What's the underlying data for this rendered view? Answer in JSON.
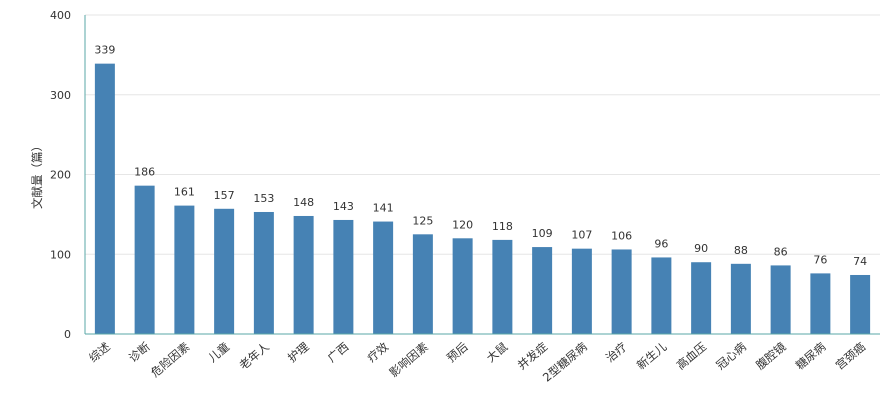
{
  "chart_data": {
    "type": "bar",
    "ylabel": "文献量（篇）",
    "ylim": [
      0,
      400
    ],
    "yticks": [
      0,
      100,
      200,
      300,
      400
    ],
    "grid": true,
    "categories": [
      "综述",
      "诊断",
      "危险因素",
      "儿童",
      "老年人",
      "护理",
      "广西",
      "疗效",
      "影响因素",
      "预后",
      "大鼠",
      "并发症",
      "2型糖尿病",
      "治疗",
      "新生儿",
      "高血压",
      "冠心病",
      "腹腔镜",
      "糖尿病",
      "宫颈癌"
    ],
    "values": [
      339,
      186,
      161,
      157,
      153,
      148,
      143,
      141,
      125,
      120,
      118,
      109,
      107,
      106,
      96,
      90,
      88,
      86,
      76,
      74
    ],
    "colors": {
      "bar": "#4682b4",
      "grid": "#e6e6e6",
      "axis": "#5aa7a7",
      "text": "#333333"
    }
  }
}
